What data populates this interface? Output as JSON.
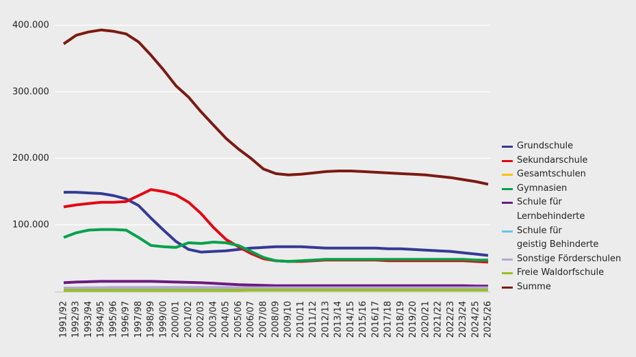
{
  "chart_data": {
    "type": "line",
    "categories": [
      "1991/92",
      "1992/93",
      "1993/94",
      "1994/95",
      "1995/96",
      "1996/97",
      "1997/98",
      "1998/99",
      "1999/00",
      "2000/01",
      "2001/02",
      "2002/03",
      "2003/04",
      "2004/05",
      "2005/06",
      "2006/07",
      "2007/08",
      "2008/09",
      "2009/10",
      "2010/11",
      "2011/12",
      "2012/13",
      "2013/14",
      "2014/15",
      "2015/16",
      "2016/17",
      "2017/18",
      "2018/19",
      "2019/20",
      "2020/21",
      "2021/22",
      "2022/23",
      "2023/24",
      "2024/25",
      "2025/26"
    ],
    "ylim": [
      0,
      400000
    ],
    "yticks": [
      {
        "value": 100000,
        "label": "100.000"
      },
      {
        "value": 200000,
        "label": "200.000"
      },
      {
        "value": 300000,
        "label": "300.000"
      },
      {
        "value": 400000,
        "label": "400.000"
      }
    ],
    "grid": true,
    "legend": "right",
    "series": [
      {
        "name": "Grundschule",
        "color": "#343a94",
        "values": [
          149000,
          149000,
          148000,
          147000,
          144000,
          139000,
          129000,
          110000,
          92000,
          75000,
          63000,
          59000,
          60000,
          61000,
          63000,
          65000,
          66000,
          67000,
          67000,
          67000,
          66000,
          65000,
          65000,
          65000,
          65000,
          65000,
          64000,
          64000,
          63000,
          62000,
          61000,
          60000,
          58000,
          56000,
          54000
        ]
      },
      {
        "name": "Sekundarschule",
        "color": "#e30613",
        "values": [
          127000,
          130000,
          132000,
          134000,
          134000,
          135000,
          144000,
          153000,
          150000,
          145000,
          134000,
          117000,
          96000,
          78000,
          67000,
          57000,
          49000,
          46000,
          45000,
          45000,
          46000,
          47000,
          47000,
          47000,
          47000,
          47000,
          46000,
          46000,
          46000,
          46000,
          46000,
          46000,
          46000,
          45000,
          44000
        ]
      },
      {
        "name": "Gesamtschulen",
        "color": "#f5c400",
        "values": [
          3000,
          3000,
          3000,
          3000,
          3000,
          3000,
          3000,
          3000,
          4000,
          4000,
          4000,
          4000,
          4000,
          5000,
          5000,
          6000,
          6000,
          7000,
          7000,
          7000,
          7000,
          7000,
          7000,
          7000,
          7000,
          7000,
          7000,
          7000,
          7000,
          7000,
          7000,
          7000,
          7000,
          7000,
          7000
        ]
      },
      {
        "name": "Gymnasien",
        "color": "#00a14b",
        "values": [
          81000,
          88000,
          92000,
          93000,
          93000,
          92000,
          81000,
          69000,
          67000,
          66000,
          73000,
          72000,
          74000,
          73000,
          69000,
          60000,
          51000,
          46000,
          45000,
          46000,
          47000,
          48000,
          48000,
          48000,
          48000,
          48000,
          48000,
          48000,
          48000,
          48000,
          48000,
          48000,
          48000,
          47000,
          47000
        ]
      },
      {
        "name": "Schule für\nLernbehinderte",
        "color": "#6a1b7e",
        "values": [
          13000,
          14000,
          14500,
          15000,
          15000,
          15000,
          15000,
          15000,
          14500,
          14000,
          13500,
          13000,
          12000,
          11000,
          10000,
          9500,
          9000,
          8500,
          8500,
          8500,
          8500,
          8500,
          8500,
          8500,
          8500,
          8500,
          8500,
          8500,
          8500,
          8500,
          8500,
          8500,
          8500,
          8000,
          8000
        ]
      },
      {
        "name": "Schule für\ngeistig Behinderte",
        "color": "#69c3e6",
        "values": [
          3000,
          3000,
          3000,
          3000,
          3000,
          3500,
          3500,
          3500,
          3500,
          3500,
          4000,
          4000,
          4000,
          4000,
          4000,
          4000,
          4500,
          4500,
          4500,
          4500,
          4500,
          4500,
          4500,
          4500,
          4500,
          4500,
          4500,
          4500,
          4500,
          4500,
          4500,
          4500,
          4500,
          4500,
          4500
        ]
      },
      {
        "name": "Sonstige Förderschulen",
        "color": "#b7a6d6",
        "values": [
          5000,
          5000,
          5500,
          5500,
          6000,
          6000,
          6000,
          6000,
          6000,
          6000,
          6000,
          6000,
          6000,
          6000,
          5500,
          5500,
          5500,
          5500,
          5500,
          5500,
          5500,
          5500,
          5500,
          5500,
          5500,
          5500,
          5500,
          5500,
          5500,
          5500,
          5500,
          5500,
          5500,
          5500,
          5500
        ]
      },
      {
        "name": "Freie Waldorfschule",
        "color": "#95c11f",
        "values": [
          1500,
          1500,
          1500,
          1500,
          1500,
          1500,
          1500,
          1500,
          1500,
          1500,
          1500,
          1500,
          1500,
          1500,
          1500,
          2000,
          2000,
          2000,
          2000,
          2000,
          2000,
          2000,
          2000,
          2000,
          2000,
          2000,
          2000,
          2000,
          2000,
          2000,
          2000,
          2000,
          2000,
          2000,
          2000
        ]
      },
      {
        "name": "Summe",
        "color": "#7b1a12",
        "values": [
          372000,
          385000,
          390000,
          393000,
          391000,
          387000,
          375000,
          355000,
          333000,
          309000,
          292000,
          270000,
          250000,
          230000,
          214000,
          200000,
          184000,
          177000,
          175000,
          176000,
          178000,
          180000,
          181000,
          181000,
          180000,
          179000,
          178000,
          177000,
          176000,
          175000,
          173000,
          171000,
          168000,
          165000,
          161000
        ]
      }
    ]
  }
}
